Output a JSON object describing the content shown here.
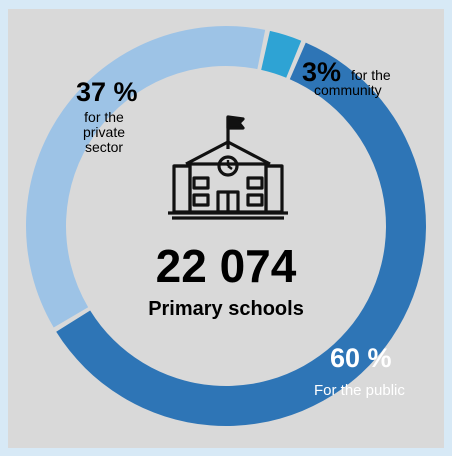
{
  "chart_data": {
    "type": "pie",
    "style": "donut",
    "total": "22 074",
    "total_label": "Primary schools",
    "slices": [
      {
        "pct_label": "60 %",
        "caption": "For the public",
        "value": 60,
        "color": "#2e75b6"
      },
      {
        "pct_label": "37 %",
        "caption": "for the private sector",
        "value": 37,
        "color": "#9dc3e6"
      },
      {
        "pct_label": "3%",
        "caption": "for the community",
        "value": 3,
        "color": "#2ea3d4"
      }
    ]
  },
  "icons": {
    "center": "school-building-icon"
  }
}
